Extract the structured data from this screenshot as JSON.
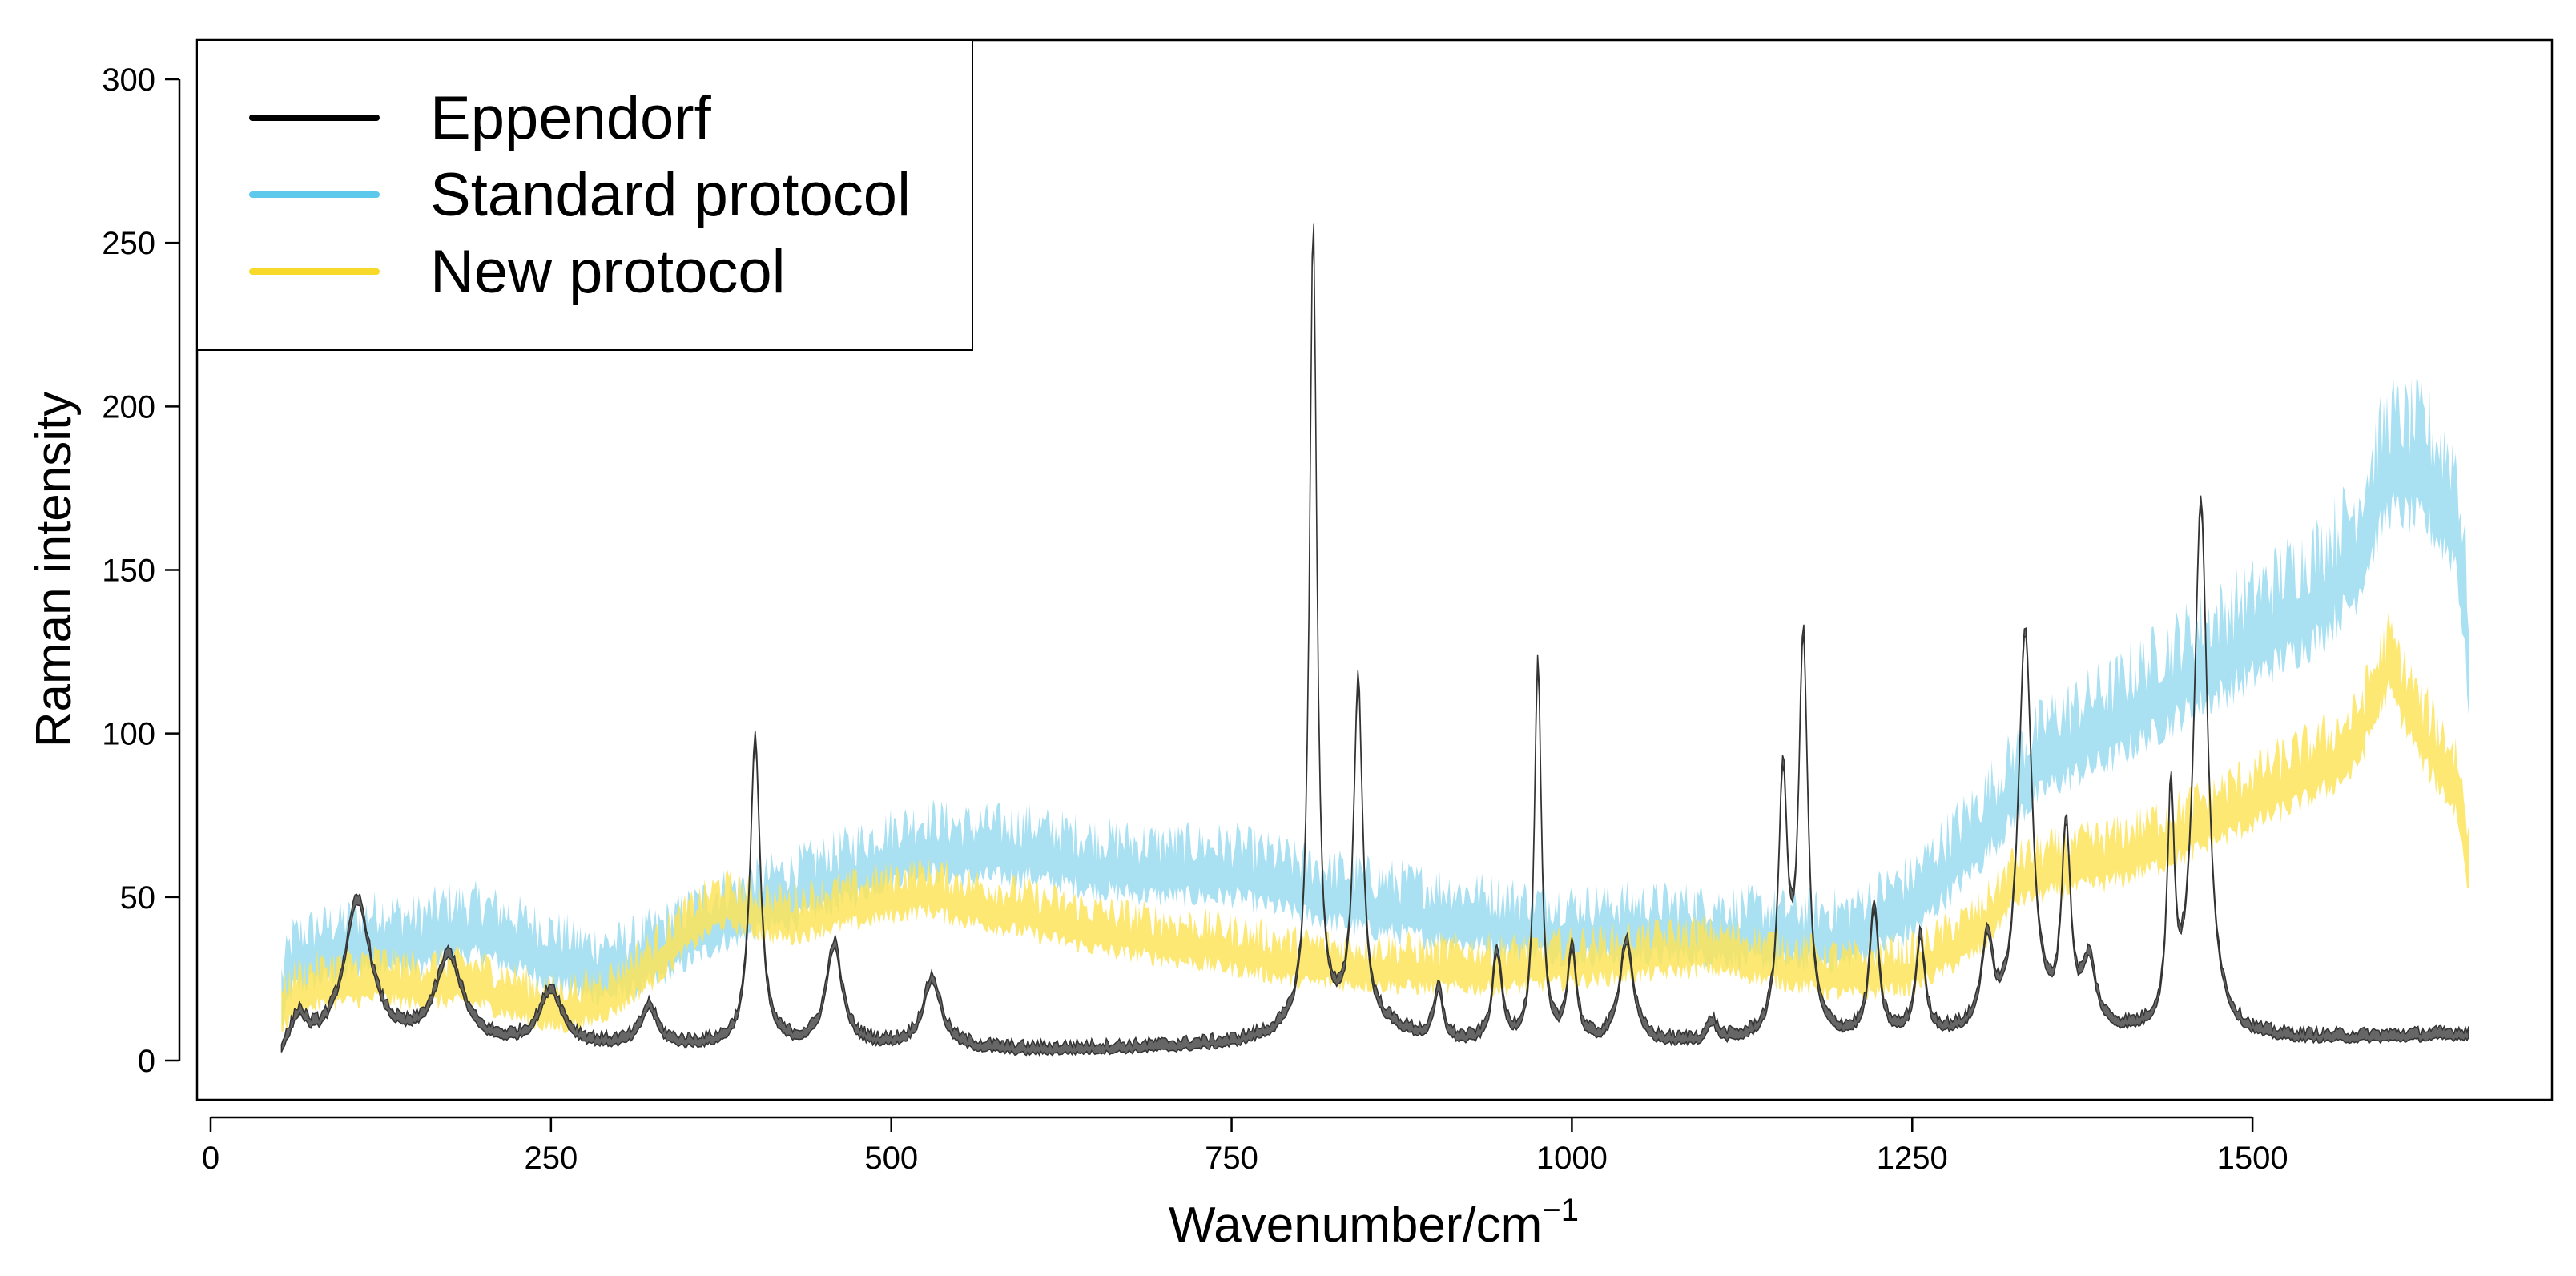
{
  "chart_data": {
    "type": "line",
    "title": "",
    "xlabel": "Wavenumber/cm",
    "xlabel_superscript": "−1",
    "ylabel": "Raman intensity",
    "xlim": [
      -10,
      1720
    ],
    "ylim": [
      -12,
      312
    ],
    "xticks": [
      0,
      250,
      500,
      750,
      1000,
      1250,
      1500
    ],
    "yticks": [
      0,
      50,
      100,
      150,
      200,
      250,
      300
    ],
    "legend_position": "top-left",
    "series": [
      {
        "name": "Eppendorf",
        "color": "#000000",
        "band_color": "#555555",
        "band_width": 3,
        "peaks": [
          [
            65,
            8,
            6
          ],
          [
            108,
            44,
            12
          ],
          [
            175,
            27,
            12
          ],
          [
            250,
            17,
            10
          ],
          [
            322,
            12,
            7
          ],
          [
            400,
            94,
            4.5
          ],
          [
            458,
            31,
            7
          ],
          [
            530,
            21,
            8
          ],
          [
            810,
            248,
            3.2
          ],
          [
            843,
            105,
            4
          ],
          [
            902,
            16,
            4
          ],
          [
            945,
            28,
            4
          ],
          [
            975,
            118,
            3
          ],
          [
            1000,
            29,
            4
          ],
          [
            1040,
            32,
            6
          ],
          [
            1103,
            6,
            4
          ],
          [
            1155,
            78,
            4
          ],
          [
            1170,
            121,
            4
          ],
          [
            1222,
            40,
            4
          ],
          [
            1256,
            30,
            4
          ],
          [
            1305,
            27,
            5
          ],
          [
            1333,
            123,
            6
          ],
          [
            1363,
            60,
            4
          ],
          [
            1380,
            20,
            6
          ],
          [
            1440,
            70,
            3
          ],
          [
            1462,
            163,
            6
          ]
        ],
        "x": [
          52,
          60,
          100,
          200,
          300,
          400,
          500,
          600,
          700,
          750,
          780,
          800,
          860,
          900,
          1000,
          1100,
          1200,
          1300,
          1400,
          1500,
          1600,
          1660
        ],
        "values": [
          1,
          4,
          4,
          4,
          4,
          4,
          4,
          3,
          4,
          5,
          7,
          9,
          10,
          5,
          4,
          5,
          6,
          7,
          7,
          6,
          7,
          8
        ]
      },
      {
        "name": "Standard protocol",
        "color": "#5bc8ec",
        "band_color": "#9adcf0",
        "band_width": 16,
        "x": [
          52,
          60,
          80,
          100,
          125,
          150,
          175,
          200,
          225,
          250,
          275,
          300,
          325,
          350,
          375,
          400,
          450,
          500,
          525,
          550,
          600,
          650,
          700,
          750,
          800,
          850,
          900,
          950,
          1000,
          1050,
          1100,
          1150,
          1200,
          1250,
          1300,
          1325,
          1350,
          1400,
          1450,
          1500,
          1550,
          1575,
          1600,
          1625,
          1650,
          1660
        ],
        "values": [
          18,
          30,
          33,
          35,
          38,
          36,
          40,
          40,
          36,
          32,
          28,
          28,
          32,
          38,
          44,
          47,
          54,
          63,
          66,
          64,
          64,
          60,
          58,
          58,
          53,
          48,
          45,
          42,
          40,
          40,
          40,
          38,
          38,
          48,
          70,
          84,
          94,
          104,
          118,
          130,
          143,
          155,
          183,
          180,
          168,
          120
        ]
      },
      {
        "name": "New protocol",
        "color": "#f7d92a",
        "band_color": "#fbe45a",
        "band_width": 12,
        "x": [
          52,
          60,
          80,
          100,
          125,
          150,
          175,
          200,
          225,
          250,
          275,
          300,
          325,
          350,
          375,
          400,
          425,
          450,
          500,
          525,
          550,
          600,
          650,
          700,
          750,
          800,
          850,
          900,
          950,
          1000,
          1050,
          1100,
          1150,
          1200,
          1250,
          1300,
          1325,
          1350,
          1400,
          1450,
          1500,
          1550,
          1575,
          1600,
          1625,
          1650,
          1660
        ],
        "values": [
          14,
          20,
          23,
          24,
          25,
          23,
          24,
          23,
          19,
          16,
          17,
          22,
          30,
          40,
          48,
          45,
          43,
          46,
          50,
          52,
          49,
          45,
          40,
          37,
          34,
          30,
          29,
          28,
          28,
          30,
          32,
          34,
          30,
          26,
          28,
          40,
          55,
          58,
          62,
          70,
          80,
          90,
          97,
          122,
          100,
          85,
          58
        ]
      }
    ]
  }
}
